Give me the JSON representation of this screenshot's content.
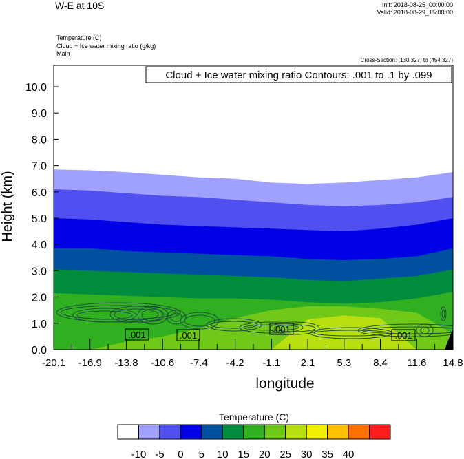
{
  "header": {
    "title": "W-E at 10S",
    "init": "Init: 2018-08-25_00:00:00",
    "valid": "Valid: 2018-08-29_15:00:00",
    "fields": [
      "Temperature   (C)",
      "Cloud + Ice water mixing ratio   (g/kg)",
      "Main"
    ],
    "cross_section": "Cross-Section: (130,327) to (454,327)"
  },
  "chart_data": {
    "type": "area",
    "subtitle": "Cloud + Ice water mixing ratio Contours: .001 to .1 by .099",
    "xlabel": "longitude",
    "ylabel": "Height (km)",
    "xlim": [
      -20.1,
      14.8
    ],
    "ylim": [
      0,
      10.8
    ],
    "x_tick_labels": [
      "-20.1",
      "-16.9",
      "-13.8",
      "-10.6",
      "-7.4",
      "-4.2",
      "-1.1",
      "2.1",
      "5.3",
      "8.4",
      "11.6",
      "14.8"
    ],
    "y_tick_labels": [
      "0.0",
      "1.0",
      "2.0",
      "3.0",
      "4.0",
      "5.0",
      "6.0",
      "7.0",
      "8.0",
      "9.0",
      "10.0"
    ],
    "colorbar": {
      "title": "Temperature  (C)",
      "labels": [
        "-10",
        "-5",
        "0",
        "5",
        "10",
        "15",
        "20",
        "25",
        "30",
        "35",
        "40"
      ],
      "colors": [
        "#ffffff",
        "#a0a0ff",
        "#5050f0",
        "#0000e6",
        "#0050a0",
        "#008c3c",
        "#30b020",
        "#70c818",
        "#b8e010",
        "#f0f000",
        "#ffc000",
        "#ff7000",
        "#ff1e1e"
      ]
    },
    "temperature_band_tops_km": [
      {
        "color": "#a0a0ff",
        "top_km": [
          6.85,
          6.82,
          6.75,
          6.65,
          6.55,
          6.5,
          6.35,
          6.3,
          6.35,
          6.45,
          6.55,
          6.75
        ]
      },
      {
        "color": "#5050f0",
        "top_km": [
          6.1,
          6.05,
          5.95,
          5.85,
          5.8,
          5.7,
          5.6,
          5.5,
          5.45,
          5.5,
          5.6,
          5.8
        ]
      },
      {
        "color": "#0000e6",
        "top_km": [
          5.0,
          4.95,
          4.85,
          4.75,
          4.7,
          4.65,
          4.6,
          4.55,
          4.5,
          4.6,
          4.75,
          5.0
        ]
      },
      {
        "color": "#0050a0",
        "top_km": [
          3.85,
          3.85,
          3.75,
          3.7,
          3.65,
          3.6,
          3.55,
          3.45,
          3.4,
          3.45,
          3.55,
          3.85
        ]
      },
      {
        "color": "#008c3c",
        "top_km": [
          3.05,
          3.0,
          2.95,
          2.9,
          2.85,
          2.8,
          2.75,
          2.65,
          2.6,
          2.7,
          2.8,
          3.05
        ]
      },
      {
        "color": "#30b020",
        "top_km": [
          2.15,
          2.1,
          2.05,
          2.0,
          1.95,
          1.95,
          1.9,
          1.8,
          1.75,
          1.8,
          1.95,
          2.2
        ]
      },
      {
        "color": "#70c818",
        "top_km": [
          0.0,
          0.0,
          0.3,
          0.5,
          0.8,
          1.2,
          1.5,
          1.65,
          1.65,
          1.55,
          1.4,
          0.6
        ]
      },
      {
        "color": "#b8e010",
        "top_km": [
          0.0,
          0.0,
          0.0,
          0.0,
          0.0,
          0.0,
          0.0,
          1.15,
          1.3,
          1.2,
          0.0,
          0.0
        ]
      }
    ],
    "contour_label": ".001",
    "contour_levels": [
      0.001,
      0.1
    ]
  }
}
